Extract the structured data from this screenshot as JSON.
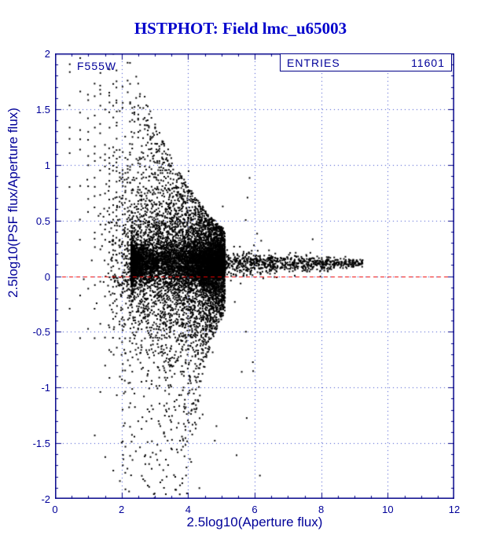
{
  "header": {
    "title": "HSTPHOT: Field lmc_u65003"
  },
  "plot_label": "F555W",
  "stats_box": {
    "label": "ENTRIES",
    "value": "11601"
  },
  "chart_data": {
    "type": "scatter",
    "title": "HSTPHOT: Field lmc_u65003",
    "xlabel": "2.5log10(Aperture flux)",
    "ylabel": "2.5log10(PSF flux/Aperture flux)",
    "xlim": [
      0,
      12
    ],
    "ylim": [
      -2,
      2
    ],
    "x_ticks": [
      0,
      2,
      4,
      6,
      8,
      10,
      12
    ],
    "y_ticks": [
      2,
      1.5,
      1,
      0.5,
      0,
      -0.5,
      -1,
      -1.5,
      -2
    ],
    "x_minor_step": 0.5,
    "y_minor_step": 0.1,
    "grid": true,
    "entries": 11601,
    "filter_label": "F555W",
    "ref_line": {
      "y": 0,
      "color": "#ee0000",
      "style": "dashed"
    },
    "point_color": "#000000",
    "frame_color": "#000088",
    "grid_color": "#3344cc",
    "text_color": "#000099",
    "title_color": "#0000cc",
    "points_note": "~11601 points: discrete quantized-flux rays fan out at low aperture flux (x<4) from -2 to 2 and converge into a tight band near y=+0.1 that extends to x=9.25; parameters below deterministically regenerate the depicted point cloud.",
    "generator": {
      "seed": 20240501,
      "quant_curves": {
        "ratio": 1.1,
        "flux_step": 0.5,
        "a_min": 1,
        "a_max": 110,
        "k_abs_max": 80,
        "k_weight": 9,
        "base_keep": 0.55,
        "p_min": 0.3,
        "jitter": 0.012
      },
      "band": {
        "n": 3600,
        "x_min": 2.3,
        "x_max": 9.25,
        "power": 4,
        "y_center": 0.115,
        "sigma_near": 0.085,
        "sigma_far": 0.018,
        "wide_frac": 0.03,
        "wide_mult": 3
      },
      "cloud": {
        "n": 900,
        "x_mean": 2.7,
        "x_sigma": 0.55,
        "y_mean": 0.12,
        "y_sigma": 0.35,
        "x_clip_min": 0.25
      },
      "outliers": {
        "n": 140,
        "x_min": 2.0,
        "x_max": 6.2,
        "x_power": 2,
        "y_min": -2.0,
        "y_max": 0.9
      }
    }
  }
}
